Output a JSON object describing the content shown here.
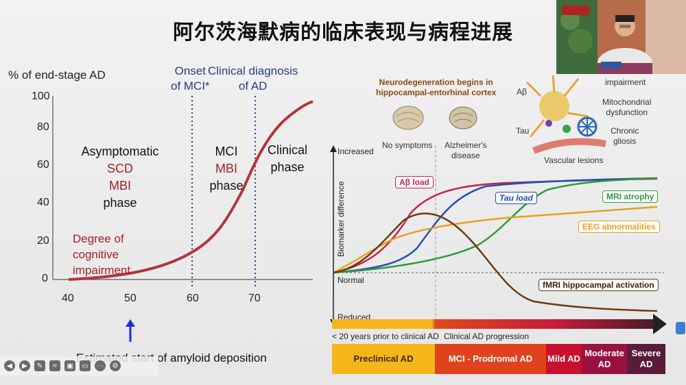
{
  "slide_title": "阿尔茨海默病的临床表现与病程进展",
  "left_chart": {
    "ylabel": "% of end-stage AD",
    "yticks": [
      "100",
      "80",
      "60",
      "40",
      "20",
      "0"
    ],
    "xticks": [
      "40",
      "50",
      "60",
      "70"
    ],
    "onset_label_1": "Onset",
    "onset_label_2": "of MCI*",
    "diag_label_1": "Clinical diagnosis",
    "diag_label_2": "of AD",
    "phase1": [
      "Asymptomatic",
      "SCD",
      "MBI",
      "phase"
    ],
    "phase2": [
      "MCI",
      "MBI",
      "phase"
    ],
    "phase3": [
      "Clinical",
      "phase"
    ],
    "curve_label": [
      "Degree of",
      "cognitive",
      "impairment"
    ],
    "arrow_note": "Estimated start of amyloid deposition",
    "colors": {
      "curve": "#b5343f",
      "vline": "#2b3a86",
      "arrow": "#1a2fd6"
    }
  },
  "right_figure": {
    "header_1": "Neurodegeneration begins in",
    "header_2": "hippocampal-entorhinal cortex",
    "brain1": "No symptoms",
    "brain2_1": "Alzheimer's",
    "brain2_2": "disease",
    "pathology": {
      "abeta": "Aβ",
      "tau": "Tau",
      "impairment": "impairment",
      "mito_1": "Mitochondrial",
      "mito_2": "dysfunction",
      "gliosis_1": "Chronic",
      "gliosis_2": "gliosis",
      "vascular": "Vascular lesions"
    },
    "yaxis": "Biomarker difference",
    "increased": "Increased",
    "normal": "Normal",
    "reduced": "Reduced",
    "biomarkers": {
      "abeta": "Aβ load",
      "tau": "Tau load",
      "mri": "MRI atrophy",
      "eeg": "EEG abnormalities",
      "fmri": "fMRI hippocampal activation"
    },
    "timeline_left": "< 20 years prior to clinical AD",
    "timeline_right": "Clinical AD progression",
    "stages": [
      "Preclinical AD",
      "MCI - Prodromal AD",
      "Mild AD",
      "Moderate AD",
      "Severe AD"
    ],
    "colors": {
      "abeta": "#c8234a",
      "tau": "#1f4fb5",
      "mri": "#2f9a3a",
      "eeg": "#e6a11a",
      "fmri": "#6a3a12"
    }
  },
  "controls": [
    "prev-icon",
    "next-icon",
    "pen-icon",
    "scan-icon",
    "camera-icon",
    "comment-icon",
    "more-icon",
    "settings-icon"
  ]
}
